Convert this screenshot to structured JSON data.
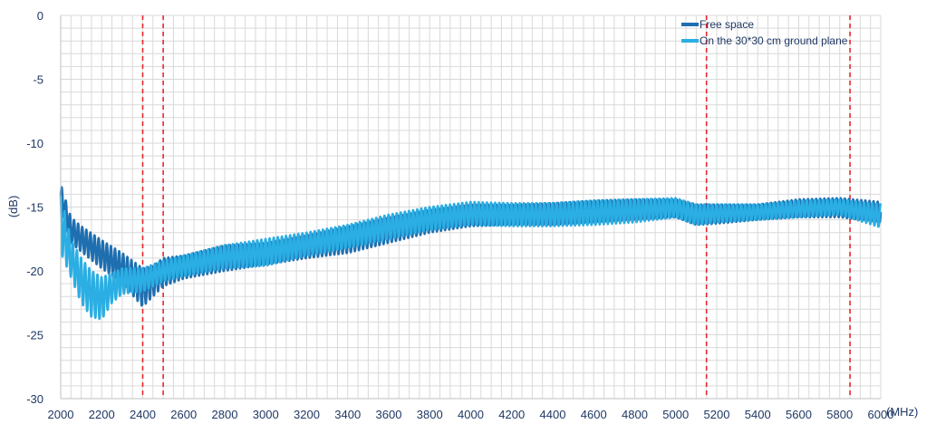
{
  "chart_data": {
    "type": "line",
    "xlabel": "(MHz)",
    "ylabel": "(dB)",
    "xlim": [
      2000,
      6000
    ],
    "ylim": [
      -30,
      0
    ],
    "x_ticks": [
      2000,
      2200,
      2400,
      2600,
      2800,
      3000,
      3200,
      3400,
      3600,
      3800,
      4000,
      4200,
      4400,
      4600,
      4800,
      5000,
      5200,
      5400,
      5600,
      5800,
      6000
    ],
    "y_ticks": [
      0,
      -5,
      -10,
      -15,
      -20,
      -25,
      -30
    ],
    "grid": true,
    "legend_position": "top-right",
    "reference_lines_x": [
      2400,
      2500,
      5150,
      5850
    ],
    "reference_line_color": "#e8262b",
    "series": [
      {
        "name": "Free space",
        "color": "#1f6fb0",
        "ripple_period_mhz": 20,
        "envelope": [
          {
            "x": 2000,
            "low": -15.0,
            "high": -13.2
          },
          {
            "x": 2050,
            "low": -17.8,
            "high": -15.8
          },
          {
            "x": 2100,
            "low": -18.5,
            "high": -16.5
          },
          {
            "x": 2200,
            "low": -19.8,
            "high": -17.6
          },
          {
            "x": 2300,
            "low": -21.0,
            "high": -18.6
          },
          {
            "x": 2400,
            "low": -22.8,
            "high": -19.8
          },
          {
            "x": 2450,
            "low": -22.0,
            "high": -19.6
          },
          {
            "x": 2500,
            "low": -21.2,
            "high": -19.0
          },
          {
            "x": 2600,
            "low": -20.6,
            "high": -18.8
          },
          {
            "x": 2800,
            "low": -20.0,
            "high": -18.0
          },
          {
            "x": 3000,
            "low": -19.5,
            "high": -17.8
          },
          {
            "x": 3200,
            "low": -19.0,
            "high": -17.2
          },
          {
            "x": 3400,
            "low": -18.6,
            "high": -16.5
          },
          {
            "x": 3600,
            "low": -17.8,
            "high": -15.8
          },
          {
            "x": 3800,
            "low": -17.0,
            "high": -15.2
          },
          {
            "x": 4000,
            "low": -16.5,
            "high": -14.8
          },
          {
            "x": 4200,
            "low": -16.4,
            "high": -14.8
          },
          {
            "x": 4400,
            "low": -16.4,
            "high": -14.7
          },
          {
            "x": 4600,
            "low": -16.2,
            "high": -14.5
          },
          {
            "x": 4800,
            "low": -16.0,
            "high": -14.4
          },
          {
            "x": 5000,
            "low": -15.8,
            "high": -14.4
          },
          {
            "x": 5100,
            "low": -16.4,
            "high": -14.8
          },
          {
            "x": 5200,
            "low": -16.3,
            "high": -14.8
          },
          {
            "x": 5400,
            "low": -16.0,
            "high": -14.8
          },
          {
            "x": 5600,
            "low": -15.8,
            "high": -14.4
          },
          {
            "x": 5800,
            "low": -15.8,
            "high": -14.3
          },
          {
            "x": 6000,
            "low": -16.2,
            "high": -14.6
          }
        ]
      },
      {
        "name": "On the 30*30 cm ground plane",
        "color": "#2aaee3",
        "ripple_period_mhz": 20,
        "envelope": [
          {
            "x": 2000,
            "low": -18.5,
            "high": -14.0
          },
          {
            "x": 2050,
            "low": -20.5,
            "high": -17.5
          },
          {
            "x": 2100,
            "low": -22.5,
            "high": -19.0
          },
          {
            "x": 2150,
            "low": -23.6,
            "high": -20.0
          },
          {
            "x": 2200,
            "low": -23.8,
            "high": -20.5
          },
          {
            "x": 2250,
            "low": -22.5,
            "high": -20.2
          },
          {
            "x": 2300,
            "low": -21.8,
            "high": -19.8
          },
          {
            "x": 2400,
            "low": -21.6,
            "high": -19.8
          },
          {
            "x": 2500,
            "low": -20.8,
            "high": -19.2
          },
          {
            "x": 2600,
            "low": -20.4,
            "high": -18.8
          },
          {
            "x": 2800,
            "low": -19.8,
            "high": -18.0
          },
          {
            "x": 3000,
            "low": -19.6,
            "high": -17.5
          },
          {
            "x": 3200,
            "low": -18.8,
            "high": -17.0
          },
          {
            "x": 3400,
            "low": -18.2,
            "high": -16.4
          },
          {
            "x": 3600,
            "low": -17.5,
            "high": -15.6
          },
          {
            "x": 3800,
            "low": -16.8,
            "high": -15.0
          },
          {
            "x": 4000,
            "low": -16.4,
            "high": -14.6
          },
          {
            "x": 4200,
            "low": -16.5,
            "high": -14.7
          },
          {
            "x": 4400,
            "low": -16.5,
            "high": -14.7
          },
          {
            "x": 4600,
            "low": -16.4,
            "high": -14.5
          },
          {
            "x": 4800,
            "low": -16.2,
            "high": -14.4
          },
          {
            "x": 5000,
            "low": -15.8,
            "high": -14.3
          },
          {
            "x": 5100,
            "low": -16.4,
            "high": -14.8
          },
          {
            "x": 5200,
            "low": -16.2,
            "high": -14.8
          },
          {
            "x": 5400,
            "low": -16.0,
            "high": -14.8
          },
          {
            "x": 5600,
            "low": -15.8,
            "high": -14.5
          },
          {
            "x": 5800,
            "low": -15.6,
            "high": -14.4
          },
          {
            "x": 6000,
            "low": -16.6,
            "high": -14.8
          }
        ]
      }
    ]
  }
}
